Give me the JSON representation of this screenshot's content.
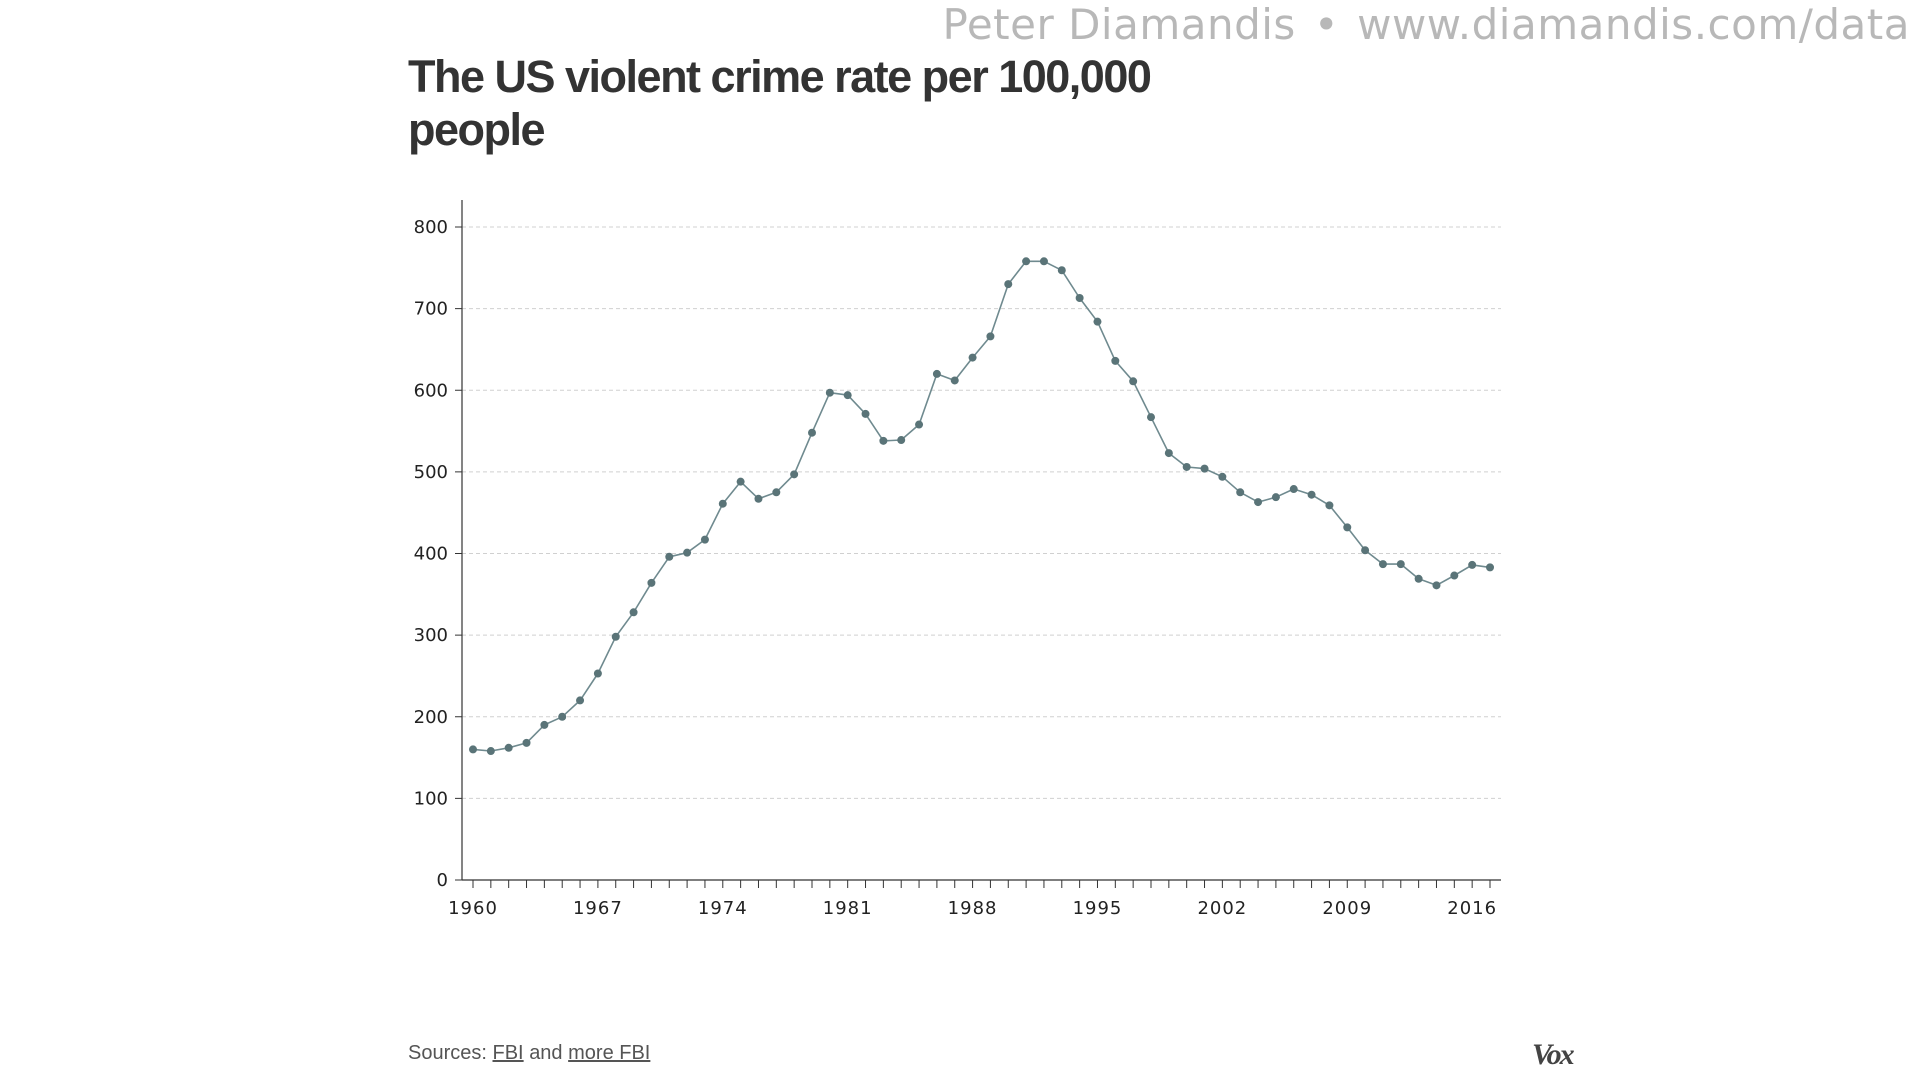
{
  "header": {
    "author": "Peter Diamandis",
    "separator": "•",
    "website": "www.diamandis.com/data"
  },
  "footer": {
    "sources_prefix": "Sources:",
    "link1": "FBI",
    "joiner": "and",
    "link2": "more FBI",
    "brand": "Vox"
  },
  "colors": {
    "line": "#6f8a8f",
    "marker": "#5a7478",
    "grid": "#d0d0d0",
    "axis": "#333333"
  },
  "chart_data": {
    "type": "line",
    "title": "The US violent crime rate per 100,000 people",
    "xlabel": "",
    "ylabel": "",
    "xlim": [
      1960,
      2017
    ],
    "ylim": [
      0,
      800
    ],
    "yticks": [
      0,
      100,
      200,
      300,
      400,
      500,
      600,
      700,
      800
    ],
    "xticks": [
      1960,
      1967,
      1974,
      1981,
      1988,
      1995,
      2002,
      2009,
      2016
    ],
    "grid": true,
    "legend": "none",
    "series": [
      {
        "x": [
          1960,
          1961,
          1962,
          1963,
          1964,
          1965,
          1966,
          1967,
          1968,
          1969,
          1970,
          1971,
          1972,
          1973,
          1974,
          1975,
          1976,
          1977,
          1978,
          1979,
          1980,
          1981,
          1982,
          1983,
          1984,
          1985,
          1986,
          1987,
          1988,
          1989,
          1990,
          1991,
          1992,
          1993,
          1994,
          1995,
          1996,
          1997,
          1998,
          1999,
          2000,
          2001,
          2002,
          2003,
          2004,
          2005,
          2006,
          2007,
          2008,
          2009,
          2010,
          2011,
          2012,
          2013,
          2014,
          2015,
          2016,
          2017
        ],
        "values": [
          160,
          158,
          162,
          168,
          190,
          200,
          220,
          253,
          298,
          328,
          364,
          396,
          401,
          417,
          461,
          488,
          467,
          475,
          497,
          548,
          597,
          594,
          571,
          538,
          539,
          558,
          620,
          612,
          640,
          666,
          730,
          758,
          758,
          747,
          713,
          684,
          636,
          611,
          567,
          523,
          506,
          504,
          494,
          475,
          463,
          469,
          479,
          472,
          459,
          432,
          404,
          387,
          387,
          369,
          361,
          373,
          386,
          383
        ]
      }
    ]
  }
}
